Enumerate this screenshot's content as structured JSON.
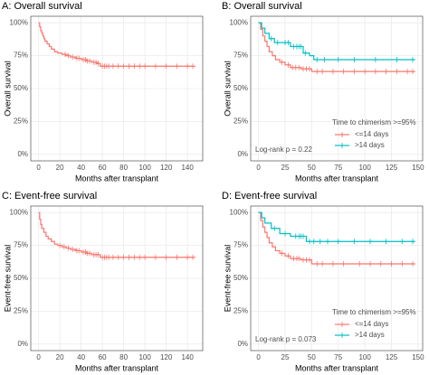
{
  "chart_data": [
    {
      "type": "step",
      "title": "A: Overall survival",
      "xlabel": "Months after transplant",
      "ylabel": "Overall survival",
      "xlim": [
        -7.35,
        154.35
      ],
      "ylim": [
        -5,
        105
      ],
      "xticks": [
        0,
        20,
        40,
        60,
        80,
        100,
        120,
        140
      ],
      "yticks": [
        {
          "value": 0,
          "label": "0%"
        },
        {
          "value": 25,
          "label": "25%"
        },
        {
          "value": 50,
          "label": "50%"
        },
        {
          "value": 75,
          "label": "75%"
        },
        {
          "value": 100,
          "label": "100%"
        }
      ],
      "grid": true,
      "color": "#f8766d",
      "x": [
        0,
        1,
        2,
        3,
        4,
        5,
        6,
        8,
        10,
        12,
        15,
        18,
        22,
        26,
        30,
        35,
        40,
        45,
        50,
        55,
        58,
        147
      ],
      "values": [
        100,
        97,
        94,
        92,
        90,
        88,
        86,
        84,
        82,
        80,
        78,
        77,
        76,
        75,
        74,
        73,
        72,
        71,
        70,
        69,
        67,
        67
      ],
      "censor_x": [
        25,
        28,
        32,
        36,
        38,
        42,
        44,
        46,
        48,
        52,
        54,
        56,
        60,
        62,
        64,
        66,
        70,
        75,
        80,
        85,
        90,
        95,
        100,
        110,
        120,
        130,
        140,
        145
      ]
    },
    {
      "type": "step",
      "title": "B: Overall survival",
      "xlabel": "Months after transplant",
      "ylabel": "Overall survival",
      "xlim": [
        -7.35,
        154.35
      ],
      "ylim": [
        -5,
        105
      ],
      "xticks": [
        0,
        25,
        50,
        75,
        100,
        125,
        150
      ],
      "yticks": [
        {
          "value": 0,
          "label": "0%"
        },
        {
          "value": 25,
          "label": "25%"
        },
        {
          "value": 50,
          "label": "50%"
        },
        {
          "value": 75,
          "label": "75%"
        },
        {
          "value": 100,
          "label": "100%"
        }
      ],
      "grid": true,
      "legend_title": "Time to chimerism >=95%",
      "legend": "bottom-right",
      "annotation": "Log-rank p = 0.22",
      "series": [
        {
          "name": "<=14 days",
          "color": "#f8766d",
          "x": [
            0,
            2,
            4,
            6,
            8,
            10,
            13,
            16,
            20,
            25,
            30,
            40,
            50,
            147
          ],
          "values": [
            100,
            95,
            90,
            86,
            82,
            78,
            75,
            72,
            70,
            68,
            66,
            65,
            63,
            63
          ],
          "censor_x": [
            22,
            28,
            32,
            35,
            38,
            42,
            45,
            48,
            55,
            60,
            70,
            80,
            90,
            100,
            110,
            120,
            130,
            140,
            145
          ]
        },
        {
          "name": ">14 days",
          "color": "#00bfc4",
          "x": [
            0,
            3,
            6,
            10,
            15,
            22,
            30,
            42,
            48,
            52,
            147
          ],
          "values": [
            100,
            96,
            92,
            88,
            85,
            85,
            82,
            77,
            75,
            72,
            72
          ],
          "censor_x": [
            12,
            18,
            25,
            28,
            33,
            36,
            38,
            40,
            44,
            55,
            62,
            75,
            90,
            110,
            130,
            145
          ]
        }
      ]
    },
    {
      "type": "step",
      "title": "C: Event-free survival",
      "xlabel": "Months after transplant",
      "ylabel": "Event-free survival",
      "xlim": [
        -7.35,
        154.35
      ],
      "ylim": [
        -5,
        105
      ],
      "xticks": [
        0,
        20,
        40,
        60,
        80,
        100,
        120,
        140
      ],
      "yticks": [
        {
          "value": 0,
          "label": "0%"
        },
        {
          "value": 25,
          "label": "25%"
        },
        {
          "value": 50,
          "label": "50%"
        },
        {
          "value": 75,
          "label": "75%"
        },
        {
          "value": 100,
          "label": "100%"
        }
      ],
      "grid": true,
      "color": "#f8766d",
      "x": [
        0,
        1,
        2,
        3,
        5,
        7,
        9,
        12,
        15,
        18,
        22,
        26,
        30,
        35,
        40,
        45,
        50,
        58,
        147
      ],
      "values": [
        100,
        95,
        91,
        88,
        85,
        82,
        80,
        78,
        76,
        75,
        74,
        73,
        72,
        71,
        70,
        69,
        68,
        66,
        66
      ],
      "censor_x": [
        20,
        24,
        28,
        32,
        36,
        38,
        42,
        44,
        46,
        48,
        52,
        54,
        56,
        60,
        62,
        64,
        66,
        70,
        75,
        80,
        85,
        90,
        95,
        100,
        110,
        120,
        130,
        140,
        145
      ]
    },
    {
      "type": "step",
      "title": "D: Event-free survival",
      "xlabel": "Months after transplant",
      "ylabel": "Event-free survival",
      "xlim": [
        -7.35,
        154.35
      ],
      "ylim": [
        -5,
        105
      ],
      "xticks": [
        0,
        25,
        50,
        75,
        100,
        125,
        150
      ],
      "yticks": [
        {
          "value": 0,
          "label": "0%"
        },
        {
          "value": 25,
          "label": "25%"
        },
        {
          "value": 50,
          "label": "50%"
        },
        {
          "value": 75,
          "label": "75%"
        },
        {
          "value": 100,
          "label": "100%"
        }
      ],
      "grid": true,
      "legend_title": "Time to chimerism >=95%",
      "legend": "bottom-right",
      "annotation": "Log-rank p = 0.073",
      "series": [
        {
          "name": "<=14 days",
          "color": "#f8766d",
          "x": [
            0,
            2,
            4,
            6,
            8,
            10,
            13,
            16,
            20,
            25,
            30,
            40,
            50,
            147
          ],
          "values": [
            100,
            94,
            89,
            85,
            81,
            77,
            74,
            71,
            69,
            67,
            65,
            64,
            61,
            61
          ],
          "censor_x": [
            22,
            28,
            33,
            36,
            38,
            42,
            45,
            48,
            55,
            60,
            70,
            80,
            95,
            105,
            115,
            125,
            135,
            145
          ]
        },
        {
          "name": ">14 days",
          "color": "#00bfc4",
          "x": [
            0,
            3,
            6,
            12,
            20,
            30,
            45,
            147
          ],
          "values": [
            100,
            96,
            92,
            88,
            84,
            82,
            78,
            78
          ],
          "censor_x": [
            15,
            25,
            35,
            38,
            40,
            42,
            48,
            52,
            58,
            65,
            75,
            90,
            105,
            120,
            135,
            145
          ]
        }
      ]
    }
  ]
}
